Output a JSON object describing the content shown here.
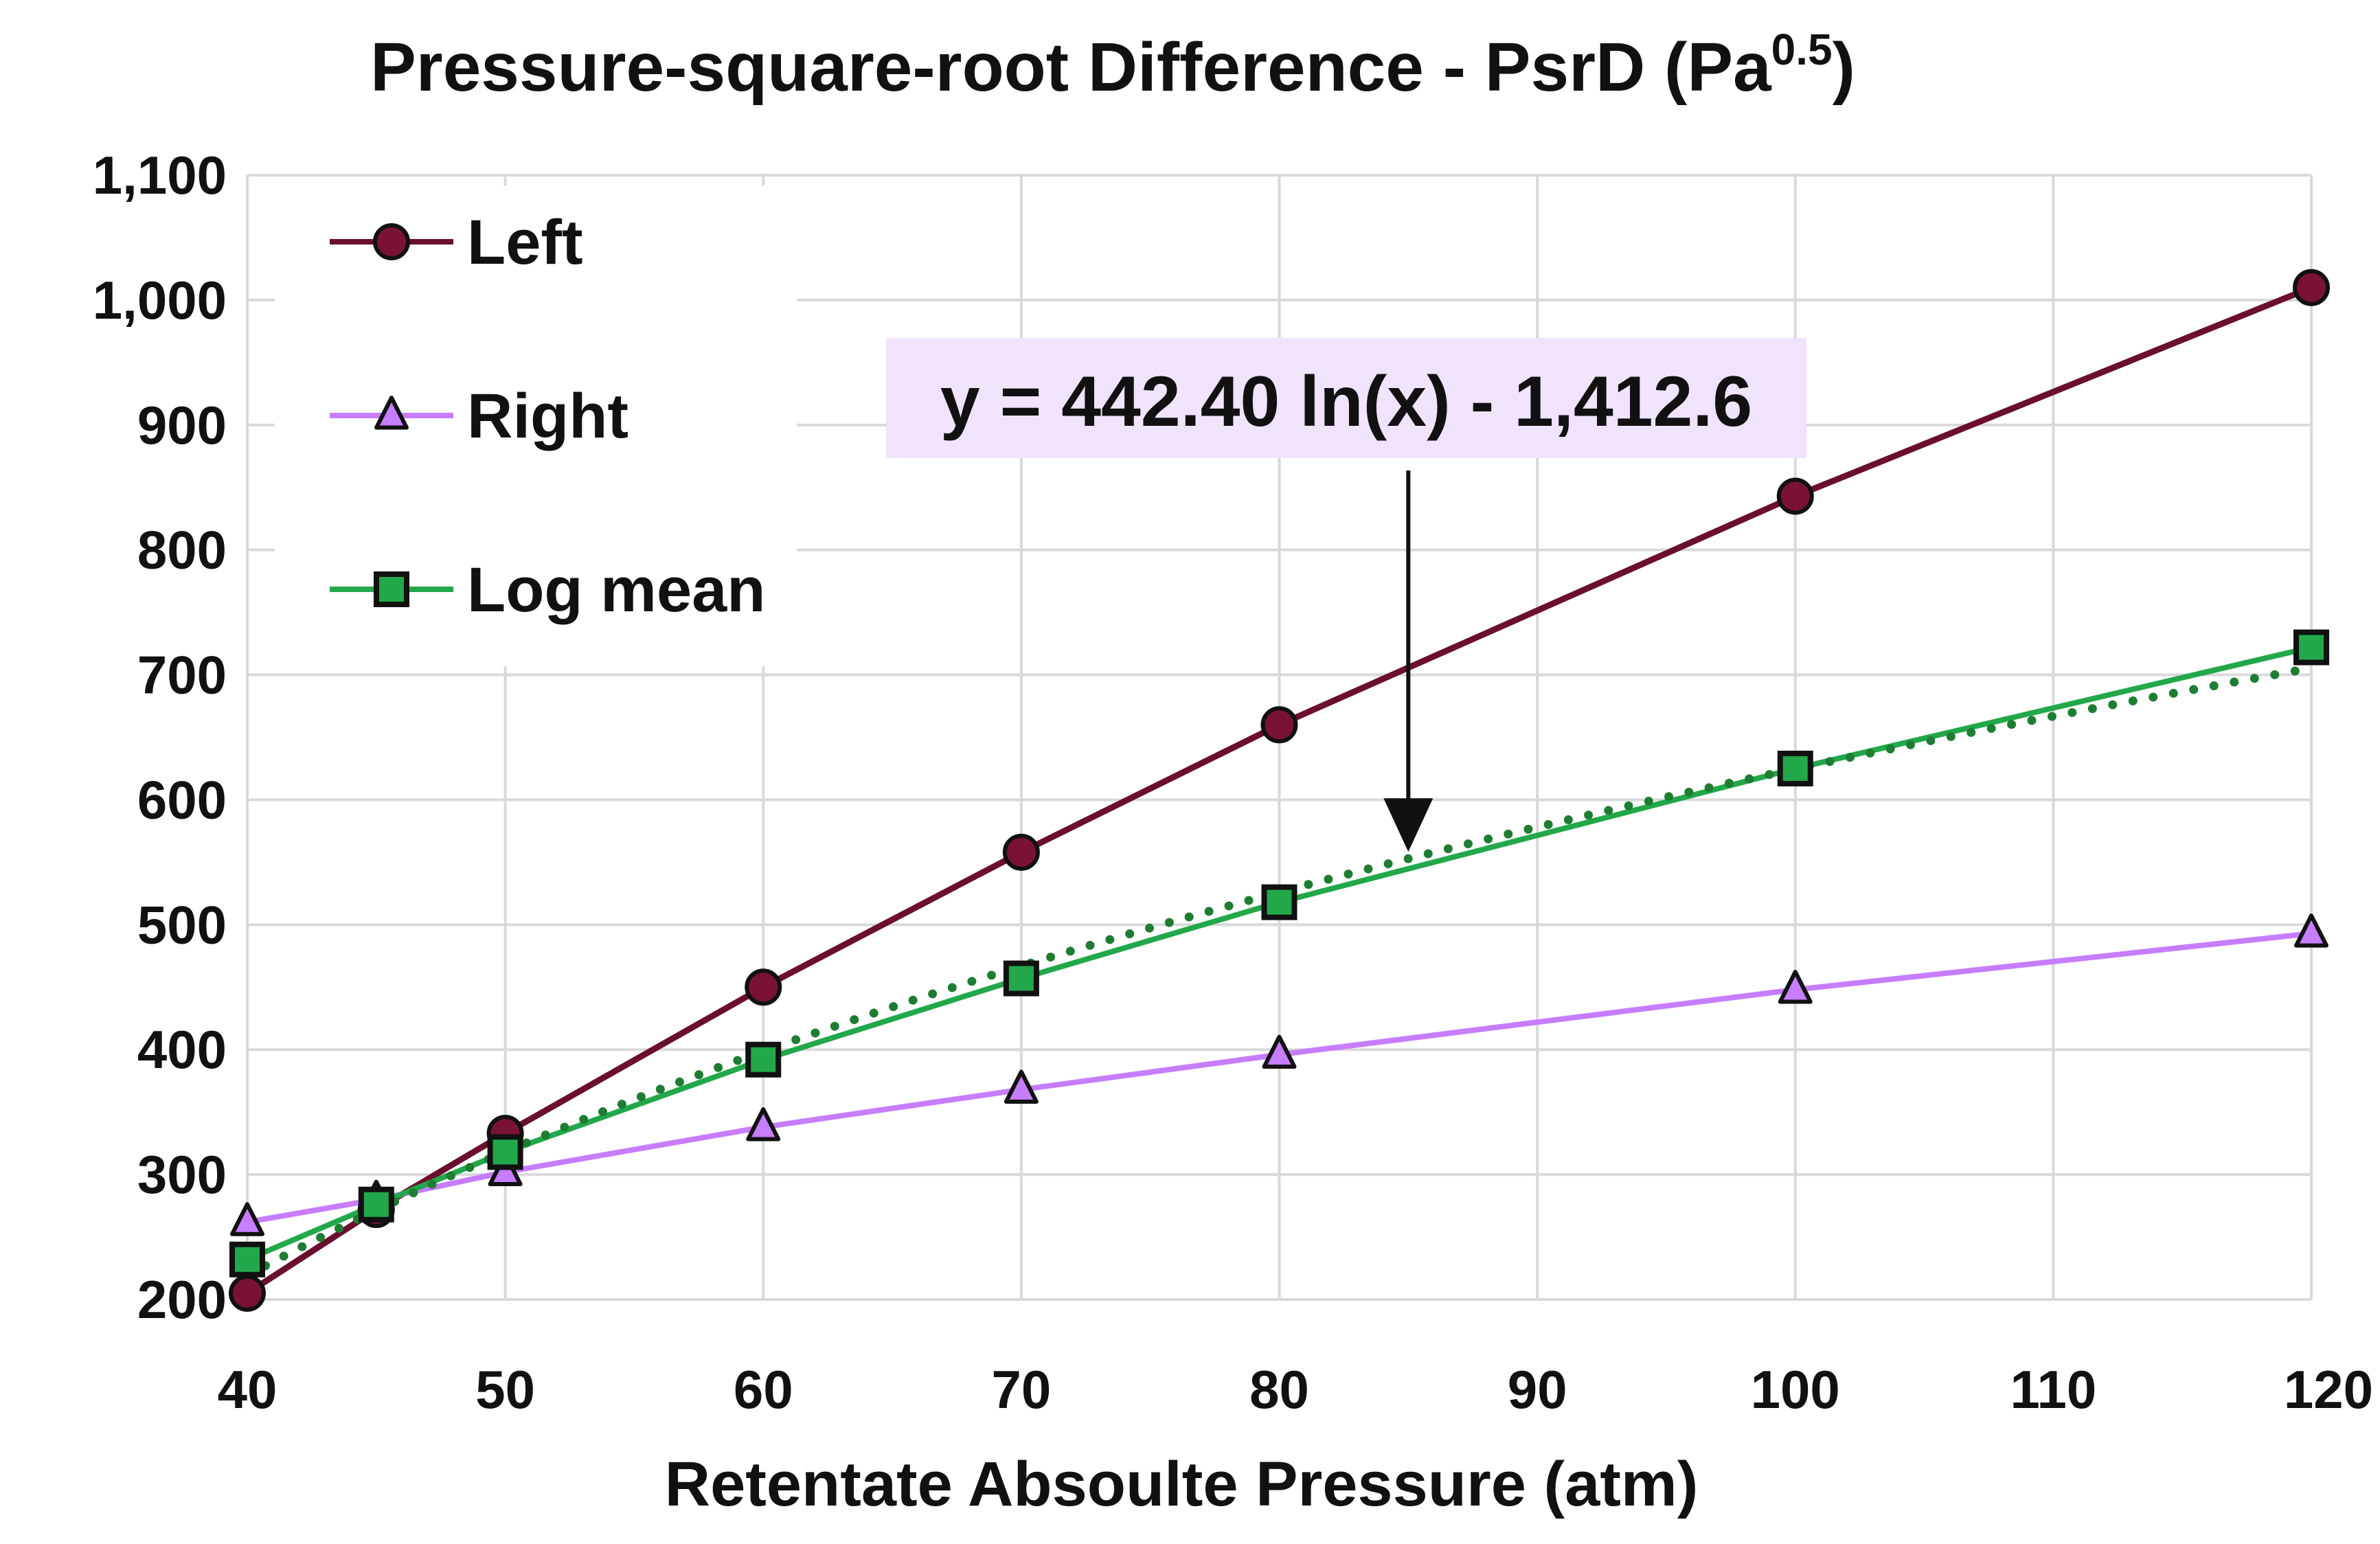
{
  "chart_data": {
    "type": "line",
    "title": "Pressure-square-root Difference - PsrD (Pa",
    "title_superscript": "0.5",
    "title_suffix": ")",
    "xlabel": "Retentate Absoulte Pressure (atm)",
    "ylabel": "",
    "xlim": [
      40,
      120
    ],
    "ylim": [
      200,
      1100
    ],
    "x_ticks": [
      40,
      50,
      60,
      70,
      80,
      90,
      100,
      110,
      120
    ],
    "x_tick_labels": [
      "40",
      "50",
      "60",
      "70",
      "80",
      "90",
      "100",
      "110",
      "120"
    ],
    "y_ticks": [
      200,
      300,
      400,
      500,
      600,
      700,
      800,
      900,
      1000,
      1100
    ],
    "y_tick_labels": [
      "200",
      "300",
      "400",
      "500",
      "600",
      "700",
      "800",
      "900",
      "1,000",
      "1,100"
    ],
    "grid": true,
    "legend_position": "top-left",
    "x": [
      40,
      45,
      50,
      60,
      70,
      80,
      100,
      120
    ],
    "series": [
      {
        "name": "Left",
        "marker": "circle",
        "color": "#6b0f2e",
        "marker_fill": "#7a1236",
        "values": [
          205,
          272,
          333,
          450,
          558,
          660,
          843,
          1010
        ]
      },
      {
        "name": "Right",
        "marker": "triangle",
        "color": "#c77dff",
        "marker_fill": "#c77dff",
        "values": [
          262,
          280,
          302,
          338,
          368,
          396,
          448,
          493
        ]
      },
      {
        "name": "Log mean",
        "marker": "square",
        "color": "#22a84a",
        "marker_fill": "#22a84a",
        "values": [
          232,
          276,
          318,
          392,
          457,
          518,
          625,
          722
        ]
      }
    ],
    "trendline": {
      "type": "logarithmic",
      "series": "Log mean",
      "color": "#1e7d32",
      "style": "dotted",
      "equation": "y = 442.40 ln(x) - 1,412.6",
      "coefficient": 442.4,
      "intercept": -1412.6,
      "box_color": "#efe4fb"
    },
    "annotation": {
      "text": "y = 442.40 ln(x) - 1,412.6",
      "arrow_target_x": 85
    }
  }
}
